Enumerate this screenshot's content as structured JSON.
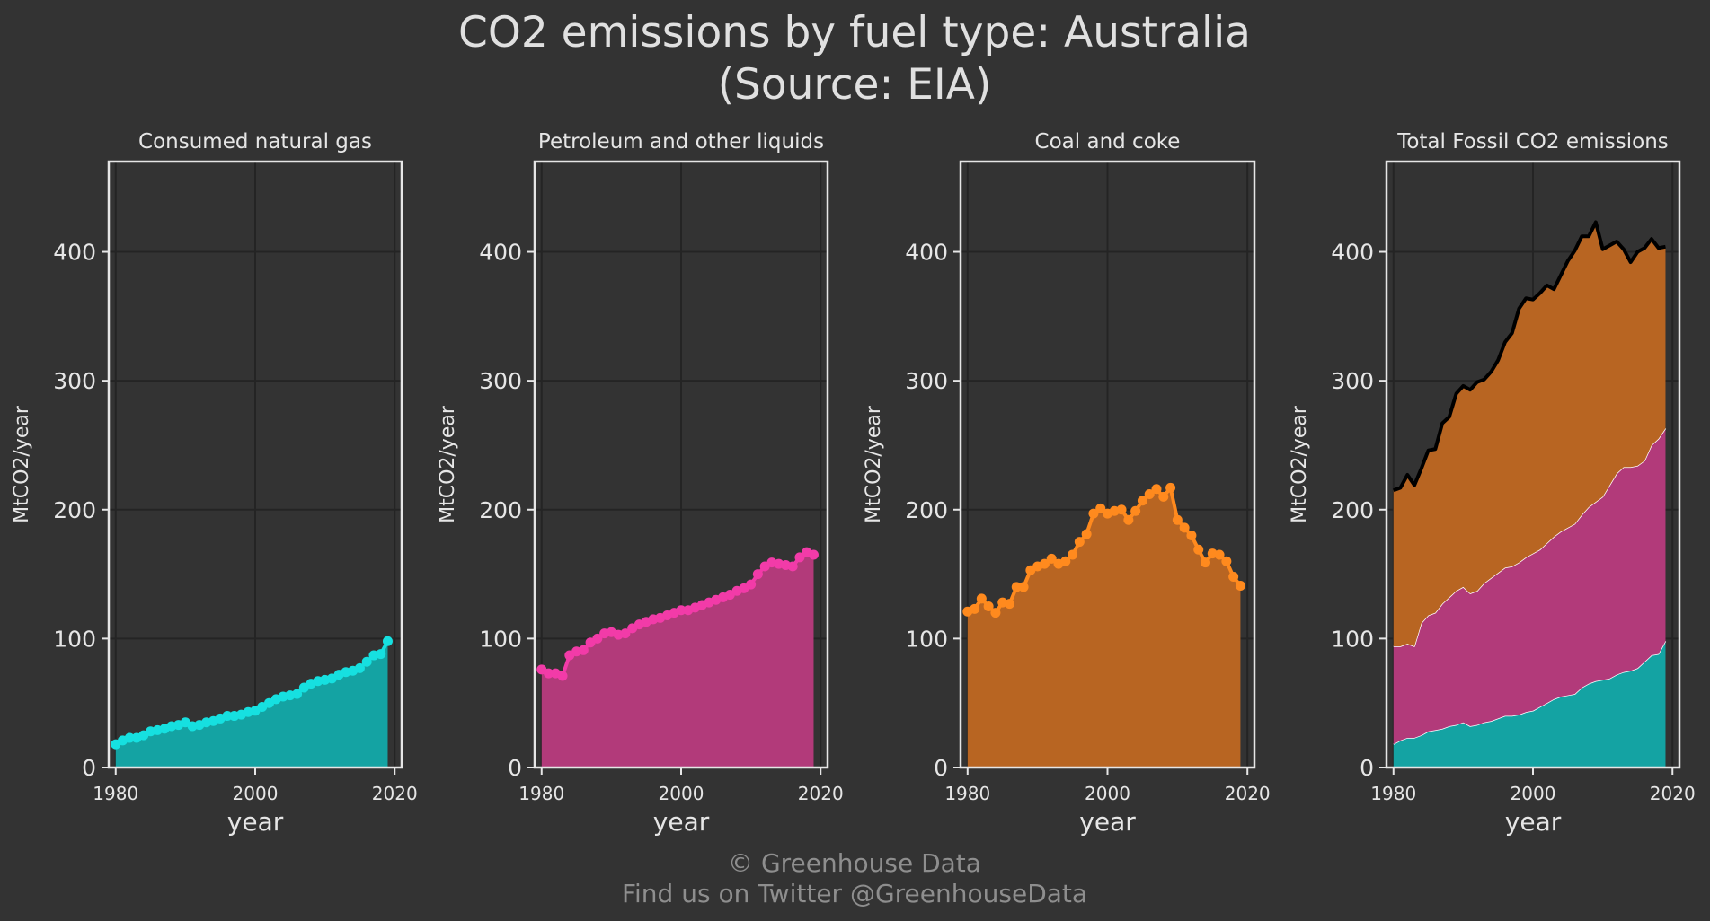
{
  "title_line1": "CO2 emissions by fuel type: Australia",
  "title_line2": "(Source: EIA)",
  "footer_line1": "© Greenhouse Data",
  "footer_line2": "Find us on Twitter @GreenhouseData",
  "colors": {
    "background": "#333333",
    "gas": "#16e0e0",
    "gas_fill": "#14a3a3",
    "petroleum": "#f23ba8",
    "petroleum_fill": "#b23a7a",
    "coal": "#ff8a1e",
    "coal_fill": "#b86522",
    "total_line": "#000000",
    "grid": "#242424",
    "frame": "#e6e6e6"
  },
  "chart_data": [
    {
      "type": "area",
      "title": "Consumed natural gas",
      "xlabel": "year",
      "ylabel": "MtCO2/year",
      "xlim": [
        1979,
        2021
      ],
      "ylim": [
        0,
        470
      ],
      "xticks": [
        1980,
        2000,
        2020
      ],
      "yticks": [
        0,
        100,
        200,
        300,
        400
      ],
      "grid": true,
      "markers": true,
      "series": [
        {
          "x": [
            1980,
            1981,
            1982,
            1983,
            1984,
            1985,
            1986,
            1987,
            1988,
            1989,
            1990,
            1991,
            1992,
            1993,
            1994,
            1995,
            1996,
            1997,
            1998,
            1999,
            2000,
            2001,
            2002,
            2003,
            2004,
            2005,
            2006,
            2007,
            2008,
            2009,
            2010,
            2011,
            2012,
            2013,
            2014,
            2015,
            2016,
            2017,
            2018,
            2019
          ],
          "y": [
            18,
            21,
            23,
            23,
            25,
            28,
            29,
            30,
            32,
            33,
            35,
            32,
            33,
            35,
            36,
            38,
            40,
            40,
            41,
            43,
            44,
            47,
            50,
            53,
            55,
            56,
            57,
            62,
            65,
            67,
            68,
            69,
            72,
            74,
            75,
            77,
            82,
            87,
            88,
            98
          ]
        }
      ]
    },
    {
      "type": "area",
      "title": "Petroleum and other liquids",
      "xlabel": "year",
      "ylabel": "MtCO2/year",
      "xlim": [
        1979,
        2021
      ],
      "ylim": [
        0,
        470
      ],
      "xticks": [
        1980,
        2000,
        2020
      ],
      "yticks": [
        0,
        100,
        200,
        300,
        400
      ],
      "grid": true,
      "markers": true,
      "series": [
        {
          "x": [
            1980,
            1981,
            1982,
            1983,
            1984,
            1985,
            1986,
            1987,
            1988,
            1989,
            1990,
            1991,
            1992,
            1993,
            1994,
            1995,
            1996,
            1997,
            1998,
            1999,
            2000,
            2001,
            2002,
            2003,
            2004,
            2005,
            2006,
            2007,
            2008,
            2009,
            2010,
            2011,
            2012,
            2013,
            2014,
            2015,
            2016,
            2017,
            2018,
            2019
          ],
          "y": [
            76,
            73,
            73,
            71,
            87,
            90,
            91,
            97,
            100,
            104,
            105,
            103,
            104,
            108,
            111,
            113,
            115,
            116,
            118,
            120,
            122,
            122,
            124,
            126,
            128,
            130,
            132,
            134,
            137,
            139,
            142,
            150,
            156,
            159,
            158,
            157,
            156,
            163,
            167,
            165
          ]
        }
      ]
    },
    {
      "type": "area",
      "title": "Coal and coke",
      "xlabel": "year",
      "ylabel": "MtCO2/year",
      "xlim": [
        1979,
        2021
      ],
      "ylim": [
        0,
        470
      ],
      "xticks": [
        1980,
        2000,
        2020
      ],
      "yticks": [
        0,
        100,
        200,
        300,
        400
      ],
      "grid": true,
      "markers": true,
      "series": [
        {
          "x": [
            1980,
            1981,
            1982,
            1983,
            1984,
            1985,
            1986,
            1987,
            1988,
            1989,
            1990,
            1991,
            1992,
            1993,
            1994,
            1995,
            1996,
            1997,
            1998,
            1999,
            2000,
            2001,
            2002,
            2003,
            2004,
            2005,
            2006,
            2007,
            2008,
            2009,
            2010,
            2011,
            2012,
            2013,
            2014,
            2015,
            2016,
            2017,
            2018,
            2019
          ],
          "y": [
            121,
            123,
            131,
            125,
            120,
            128,
            127,
            140,
            140,
            153,
            156,
            158,
            162,
            158,
            160,
            165,
            175,
            181,
            197,
            201,
            197,
            199,
            200,
            192,
            199,
            207,
            212,
            216,
            210,
            217,
            192,
            186,
            180,
            169,
            159,
            166,
            165,
            160,
            148,
            141
          ]
        }
      ]
    },
    {
      "type": "area",
      "title": "Total Fossil CO2 emissions",
      "xlabel": "year",
      "ylabel": "MtCO2/year",
      "xlim": [
        1979,
        2021
      ],
      "ylim": [
        0,
        470
      ],
      "xticks": [
        1980,
        2000,
        2020
      ],
      "yticks": [
        0,
        100,
        200,
        300,
        400
      ],
      "grid": true,
      "stacked": true,
      "markers": false,
      "series": [
        {
          "x": [
            1980,
            1981,
            1982,
            1983,
            1984,
            1985,
            1986,
            1987,
            1988,
            1989,
            1990,
            1991,
            1992,
            1993,
            1994,
            1995,
            1996,
            1997,
            1998,
            1999,
            2000,
            2001,
            2002,
            2003,
            2004,
            2005,
            2006,
            2007,
            2008,
            2009,
            2010,
            2011,
            2012,
            2013,
            2014,
            2015,
            2016,
            2017,
            2018,
            2019
          ],
          "y": [
            18,
            21,
            23,
            23,
            25,
            28,
            29,
            30,
            32,
            33,
            35,
            32,
            33,
            35,
            36,
            38,
            40,
            40,
            41,
            43,
            44,
            47,
            50,
            53,
            55,
            56,
            57,
            62,
            65,
            67,
            68,
            69,
            72,
            74,
            75,
            77,
            82,
            87,
            88,
            98
          ]
        },
        {
          "x": [
            1980,
            1981,
            1982,
            1983,
            1984,
            1985,
            1986,
            1987,
            1988,
            1989,
            1990,
            1991,
            1992,
            1993,
            1994,
            1995,
            1996,
            1997,
            1998,
            1999,
            2000,
            2001,
            2002,
            2003,
            2004,
            2005,
            2006,
            2007,
            2008,
            2009,
            2010,
            2011,
            2012,
            2013,
            2014,
            2015,
            2016,
            2017,
            2018,
            2019
          ],
          "y": [
            76,
            73,
            73,
            71,
            87,
            90,
            91,
            97,
            100,
            104,
            105,
            103,
            104,
            108,
            111,
            113,
            115,
            116,
            118,
            120,
            122,
            122,
            124,
            126,
            128,
            130,
            132,
            134,
            137,
            139,
            142,
            150,
            156,
            159,
            158,
            157,
            156,
            163,
            167,
            165
          ]
        },
        {
          "x": [
            1980,
            1981,
            1982,
            1983,
            1984,
            1985,
            1986,
            1987,
            1988,
            1989,
            1990,
            1991,
            1992,
            1993,
            1994,
            1995,
            1996,
            1997,
            1998,
            1999,
            2000,
            2001,
            2002,
            2003,
            2004,
            2005,
            2006,
            2007,
            2008,
            2009,
            2010,
            2011,
            2012,
            2013,
            2014,
            2015,
            2016,
            2017,
            2018,
            2019
          ],
          "y": [
            121,
            123,
            131,
            125,
            120,
            128,
            127,
            140,
            140,
            153,
            156,
            158,
            162,
            158,
            160,
            165,
            175,
            181,
            197,
            201,
            197,
            199,
            200,
            192,
            199,
            207,
            212,
            216,
            210,
            217,
            192,
            186,
            180,
            169,
            159,
            166,
            165,
            160,
            148,
            141
          ]
        }
      ]
    }
  ]
}
